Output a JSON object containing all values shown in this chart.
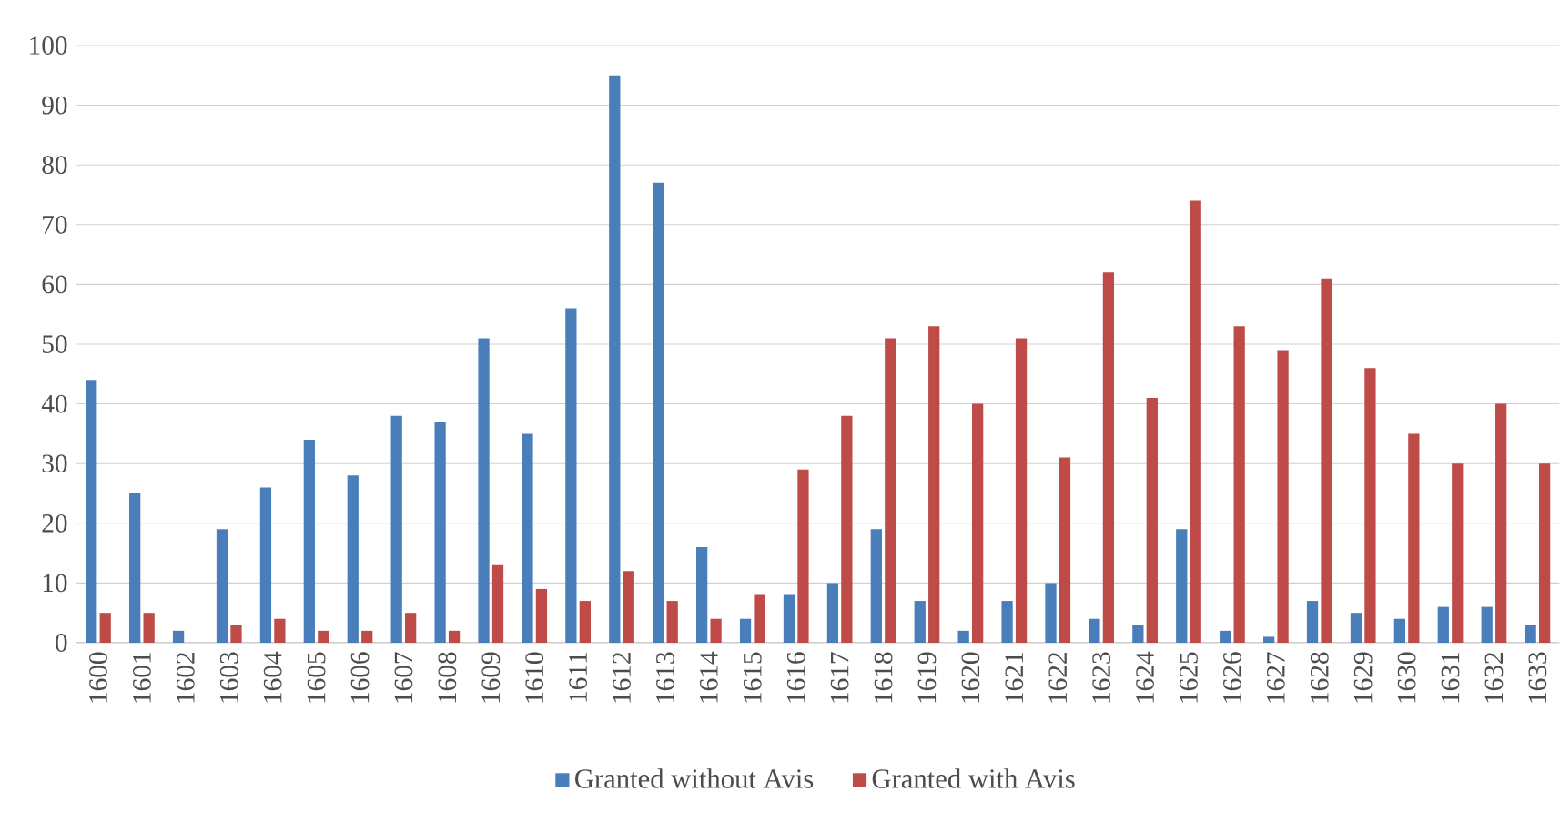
{
  "chart_data": {
    "type": "bar",
    "categories": [
      "1600",
      "1601",
      "1602",
      "1603",
      "1604",
      "1605",
      "1606",
      "1607",
      "1608",
      "1609",
      "1610",
      "1611",
      "1612",
      "1613",
      "1614",
      "1615",
      "1616",
      "1617",
      "1618",
      "1619",
      "1620",
      "1621",
      "1622",
      "1623",
      "1624",
      "1625",
      "1626",
      "1627",
      "1628",
      "1629",
      "1630",
      "1631",
      "1632",
      "1633"
    ],
    "series": [
      {
        "name": "Granted without Avis",
        "color": "#4a7ebb",
        "values": [
          44,
          25,
          2,
          19,
          26,
          34,
          28,
          38,
          37,
          51,
          35,
          56,
          95,
          77,
          16,
          4,
          8,
          10,
          19,
          7,
          2,
          7,
          10,
          4,
          3,
          19,
          2,
          1,
          7,
          5,
          4,
          6,
          6,
          3
        ]
      },
      {
        "name": "Granted with Avis",
        "color": "#be4b48",
        "values": [
          5,
          5,
          0,
          3,
          4,
          2,
          2,
          5,
          2,
          13,
          9,
          7,
          12,
          7,
          4,
          8,
          29,
          38,
          51,
          53,
          40,
          51,
          31,
          62,
          41,
          74,
          53,
          49,
          61,
          46,
          35,
          30,
          40,
          30
        ]
      }
    ],
    "ylim": [
      0,
      100
    ],
    "yticks": [
      0,
      10,
      20,
      30,
      40,
      50,
      60,
      70,
      80,
      90,
      100
    ],
    "grid": "y",
    "legend": "bottom"
  }
}
